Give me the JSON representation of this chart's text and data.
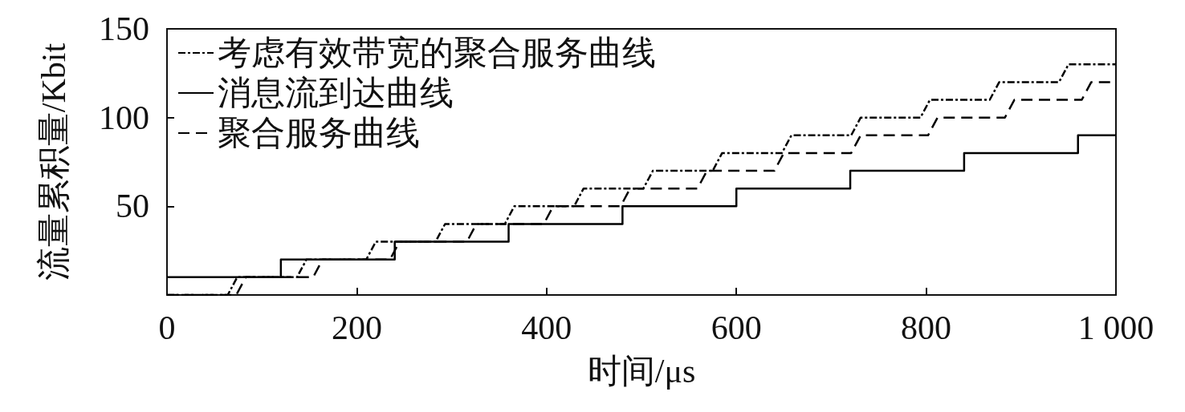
{
  "chart_data": {
    "type": "line",
    "xlabel": "时间/μs",
    "ylabel": "流量累积量/Kbit",
    "xlim": [
      0,
      1000
    ],
    "xticks": [
      0,
      200,
      400,
      600,
      800,
      {
        "value": 1000,
        "label": "1 000"
      }
    ],
    "ylim": [
      0,
      150
    ],
    "yticks": [
      50,
      100,
      150
    ],
    "grid": false,
    "legend": "top left",
    "marker": "none",
    "series": [
      {
        "name": "考虑有效带宽的聚合服务曲线",
        "color": "#000000",
        "line_style": "dashdot",
        "x": [
          0,
          64,
          74,
          137,
          147,
          210,
          220,
          283,
          293,
          356,
          366,
          429,
          439,
          502,
          512,
          575,
          585,
          648,
          658,
          721,
          731,
          794,
          804,
          867,
          877,
          940,
          950,
          1000
        ],
        "values": [
          0,
          0,
          10,
          10,
          20,
          20,
          30,
          30,
          40,
          40,
          50,
          50,
          60,
          60,
          70,
          70,
          80,
          80,
          90,
          90,
          100,
          100,
          110,
          110,
          120,
          120,
          130,
          130
        ]
      },
      {
        "name": "消息流到达曲线",
        "type": "step",
        "color": "#000000",
        "line_style": "solid",
        "x": [
          0,
          120,
          240,
          360,
          480,
          600,
          720,
          840,
          960,
          1000
        ],
        "values": [
          10,
          20,
          30,
          40,
          50,
          60,
          70,
          80,
          90,
          90
        ]
      },
      {
        "name": "聚合服务曲线",
        "color": "#000000",
        "line_style": "dashed",
        "x": [
          0,
          73,
          83,
          154,
          164,
          235,
          245,
          316,
          326,
          397,
          407,
          478,
          488,
          559,
          569,
          640,
          650,
          721,
          731,
          802,
          812,
          883,
          893,
          964,
          974,
          1000
        ],
        "values": [
          0,
          0,
          10,
          10,
          20,
          20,
          30,
          30,
          40,
          40,
          50,
          50,
          60,
          60,
          70,
          70,
          80,
          80,
          90,
          90,
          100,
          100,
          110,
          110,
          120,
          120
        ]
      }
    ]
  }
}
